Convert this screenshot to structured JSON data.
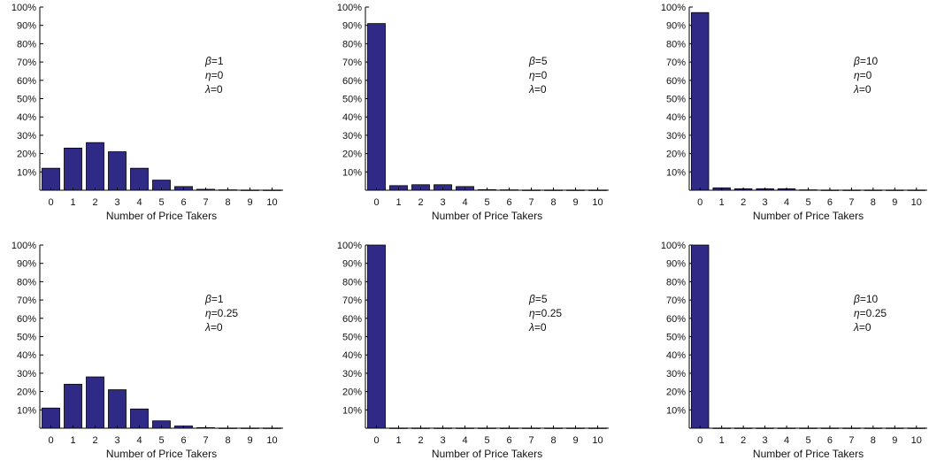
{
  "figure": {
    "bar_color": "#2e2a86",
    "bar_edge": "#000000",
    "axis_color": "#000000"
  },
  "chart_data": [
    {
      "type": "bar",
      "categories": [
        "0",
        "1",
        "2",
        "3",
        "4",
        "5",
        "6",
        "7",
        "8",
        "9",
        "10"
      ],
      "values": [
        12,
        23,
        26,
        21,
        12,
        5.5,
        2,
        0.5,
        0.2,
        0.1,
        0.1
      ],
      "xlabel": "Number of Price Takers",
      "ylabel": "",
      "ylim": [
        0,
        100
      ],
      "yticks": [
        "10%",
        "20%",
        "30%",
        "40%",
        "50%",
        "60%",
        "70%",
        "80%",
        "90%",
        "100%"
      ],
      "annotation": [
        [
          "β",
          "=1"
        ],
        [
          "η",
          "=0"
        ],
        [
          "λ",
          "=0"
        ]
      ]
    },
    {
      "type": "bar",
      "categories": [
        "0",
        "1",
        "2",
        "3",
        "4",
        "5",
        "6",
        "7",
        "8",
        "9",
        "10"
      ],
      "values": [
        91,
        2.5,
        3,
        3,
        2,
        0.3,
        0.2,
        0.1,
        0.1,
        0.1,
        0.1
      ],
      "xlabel": "Number of Price Takers",
      "ylabel": "",
      "ylim": [
        0,
        100
      ],
      "yticks": [
        "10%",
        "20%",
        "30%",
        "40%",
        "50%",
        "60%",
        "70%",
        "80%",
        "90%",
        "100%"
      ],
      "annotation": [
        [
          "β",
          "=5"
        ],
        [
          "η",
          "=0"
        ],
        [
          "λ",
          "=0"
        ]
      ]
    },
    {
      "type": "bar",
      "categories": [
        "0",
        "1",
        "2",
        "3",
        "4",
        "5",
        "6",
        "7",
        "8",
        "9",
        "10"
      ],
      "values": [
        97,
        1.3,
        0.8,
        0.8,
        0.8,
        0.2,
        0.1,
        0.1,
        0.1,
        0.1,
        0.1
      ],
      "xlabel": "Number of Price Takers",
      "ylabel": "",
      "ylim": [
        0,
        100
      ],
      "yticks": [
        "10%",
        "20%",
        "30%",
        "40%",
        "50%",
        "60%",
        "70%",
        "80%",
        "90%",
        "100%"
      ],
      "annotation": [
        [
          "β",
          "=10"
        ],
        [
          "η",
          "=0"
        ],
        [
          "λ",
          "=0"
        ]
      ]
    },
    {
      "type": "bar",
      "categories": [
        "0",
        "1",
        "2",
        "3",
        "4",
        "5",
        "6",
        "7",
        "8",
        "9",
        "10"
      ],
      "values": [
        11,
        24,
        28,
        21,
        10.5,
        4,
        1.2,
        0.3,
        0.1,
        0.1,
        0.1
      ],
      "xlabel": "Number of Price Takers",
      "ylabel": "",
      "ylim": [
        0,
        100
      ],
      "yticks": [
        "10%",
        "20%",
        "30%",
        "40%",
        "50%",
        "60%",
        "70%",
        "80%",
        "90%",
        "100%"
      ],
      "annotation": [
        [
          "β",
          "=1"
        ],
        [
          "η",
          "=0.25"
        ],
        [
          "λ",
          "=0"
        ]
      ]
    },
    {
      "type": "bar",
      "categories": [
        "0",
        "1",
        "2",
        "3",
        "4",
        "5",
        "6",
        "7",
        "8",
        "9",
        "10"
      ],
      "values": [
        100,
        0.1,
        0.1,
        0.1,
        0.1,
        0.1,
        0.1,
        0.1,
        0.1,
        0.1,
        0.1
      ],
      "xlabel": "Number of Price Takers",
      "ylabel": "",
      "ylim": [
        0,
        100
      ],
      "yticks": [
        "10%",
        "20%",
        "30%",
        "40%",
        "50%",
        "60%",
        "70%",
        "80%",
        "90%",
        "100%"
      ],
      "annotation": [
        [
          "β",
          "=5"
        ],
        [
          "η",
          "=0.25"
        ],
        [
          "λ",
          "=0"
        ]
      ]
    },
    {
      "type": "bar",
      "categories": [
        "0",
        "1",
        "2",
        "3",
        "4",
        "5",
        "6",
        "7",
        "8",
        "9",
        "10"
      ],
      "values": [
        100,
        0.1,
        0.1,
        0.1,
        0.1,
        0.1,
        0.1,
        0.1,
        0.1,
        0.1,
        0.1
      ],
      "xlabel": "Number of Price Takers",
      "ylabel": "",
      "ylim": [
        0,
        100
      ],
      "yticks": [
        "10%",
        "20%",
        "30%",
        "40%",
        "50%",
        "60%",
        "70%",
        "80%",
        "90%",
        "100%"
      ],
      "annotation": [
        [
          "β",
          "=10"
        ],
        [
          "η",
          "=0.25"
        ],
        [
          "λ",
          "=0"
        ]
      ]
    }
  ]
}
